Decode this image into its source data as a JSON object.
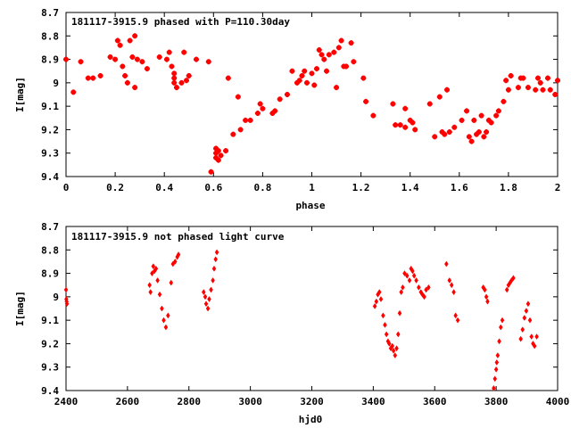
{
  "chart_data": [
    {
      "type": "scatter",
      "title": "181117-3915.9 phased with P=110.30day",
      "xlabel": "phase",
      "ylabel": "I[mag]",
      "xlim": [
        0,
        2
      ],
      "ylim": [
        9.4,
        8.7
      ],
      "y_inverted": true,
      "xticks": [
        "0",
        "0.2",
        "0.4",
        "0.6",
        "0.8",
        "1",
        "1.2",
        "1.4",
        "1.6",
        "1.8",
        "2"
      ],
      "yticks": [
        "8.7",
        "8.8",
        "8.9",
        "9",
        "9.1",
        "9.2",
        "9.3",
        "9.4"
      ],
      "marker": "plus",
      "color": "#ff0000",
      "grid": false,
      "points": [
        [
          0.0,
          8.9
        ],
        [
          0.03,
          9.04
        ],
        [
          0.06,
          8.91
        ],
        [
          0.09,
          8.98
        ],
        [
          0.11,
          8.98
        ],
        [
          0.14,
          8.97
        ],
        [
          0.18,
          8.89
        ],
        [
          0.2,
          8.9
        ],
        [
          0.21,
          8.82
        ],
        [
          0.22,
          8.84
        ],
        [
          0.23,
          8.93
        ],
        [
          0.24,
          8.97
        ],
        [
          0.25,
          9.0
        ],
        [
          0.26,
          8.82
        ],
        [
          0.27,
          8.89
        ],
        [
          0.28,
          8.8
        ],
        [
          0.28,
          9.02
        ],
        [
          0.29,
          8.9
        ],
        [
          0.31,
          8.91
        ],
        [
          0.33,
          8.94
        ],
        [
          0.38,
          8.89
        ],
        [
          0.41,
          8.9
        ],
        [
          0.42,
          8.87
        ],
        [
          0.43,
          8.93
        ],
        [
          0.44,
          8.96
        ],
        [
          0.44,
          8.98
        ],
        [
          0.44,
          9.0
        ],
        [
          0.45,
          9.02
        ],
        [
          0.47,
          9.0
        ],
        [
          0.48,
          8.87
        ],
        [
          0.49,
          8.99
        ],
        [
          0.5,
          8.97
        ],
        [
          0.53,
          8.9
        ],
        [
          0.58,
          8.91
        ],
        [
          0.59,
          9.38
        ],
        [
          0.61,
          9.28
        ],
        [
          0.61,
          9.3
        ],
        [
          0.61,
          9.32
        ],
        [
          0.62,
          9.33
        ],
        [
          0.62,
          9.29
        ],
        [
          0.63,
          9.31
        ],
        [
          0.65,
          9.29
        ],
        [
          0.66,
          8.98
        ],
        [
          0.68,
          9.22
        ],
        [
          0.7,
          9.06
        ],
        [
          0.71,
          9.2
        ],
        [
          0.73,
          9.16
        ],
        [
          0.75,
          9.16
        ],
        [
          0.78,
          9.13
        ],
        [
          0.79,
          9.09
        ],
        [
          0.8,
          9.11
        ],
        [
          0.84,
          9.13
        ],
        [
          0.85,
          9.12
        ],
        [
          0.87,
          9.07
        ],
        [
          0.9,
          9.05
        ],
        [
          0.92,
          8.95
        ],
        [
          0.94,
          9.0
        ],
        [
          0.95,
          8.99
        ],
        [
          0.96,
          8.97
        ],
        [
          0.97,
          8.95
        ],
        [
          0.98,
          9.0
        ],
        [
          1.0,
          8.96
        ],
        [
          1.01,
          9.01
        ],
        [
          1.02,
          8.94
        ],
        [
          1.03,
          8.86
        ],
        [
          1.04,
          8.88
        ],
        [
          1.05,
          8.9
        ],
        [
          1.06,
          8.95
        ],
        [
          1.07,
          8.88
        ],
        [
          1.09,
          8.87
        ],
        [
          1.1,
          9.02
        ],
        [
          1.11,
          8.85
        ],
        [
          1.12,
          8.82
        ],
        [
          1.13,
          8.93
        ],
        [
          1.14,
          8.93
        ],
        [
          1.16,
          8.83
        ],
        [
          1.17,
          8.91
        ],
        [
          1.21,
          8.98
        ],
        [
          1.22,
          9.08
        ],
        [
          1.25,
          9.14
        ],
        [
          1.33,
          9.09
        ],
        [
          1.34,
          9.18
        ],
        [
          1.36,
          9.18
        ],
        [
          1.38,
          9.19
        ],
        [
          1.38,
          9.11
        ],
        [
          1.4,
          9.16
        ],
        [
          1.41,
          9.17
        ],
        [
          1.42,
          9.2
        ],
        [
          1.48,
          9.09
        ],
        [
          1.5,
          9.23
        ],
        [
          1.52,
          9.06
        ],
        [
          1.53,
          9.21
        ],
        [
          1.54,
          9.22
        ],
        [
          1.55,
          9.03
        ],
        [
          1.56,
          9.21
        ],
        [
          1.58,
          9.19
        ],
        [
          1.61,
          9.16
        ],
        [
          1.63,
          9.12
        ],
        [
          1.64,
          9.23
        ],
        [
          1.65,
          9.25
        ],
        [
          1.66,
          9.16
        ],
        [
          1.67,
          9.22
        ],
        [
          1.68,
          9.21
        ],
        [
          1.69,
          9.14
        ],
        [
          1.7,
          9.23
        ],
        [
          1.71,
          9.21
        ],
        [
          1.72,
          9.16
        ],
        [
          1.73,
          9.17
        ],
        [
          1.75,
          9.14
        ],
        [
          1.76,
          9.12
        ],
        [
          1.78,
          9.08
        ],
        [
          1.79,
          8.99
        ],
        [
          1.8,
          9.03
        ],
        [
          1.81,
          8.97
        ],
        [
          1.84,
          9.02
        ],
        [
          1.85,
          8.98
        ],
        [
          1.86,
          8.98
        ],
        [
          1.88,
          9.02
        ],
        [
          1.91,
          9.03
        ],
        [
          1.92,
          8.98
        ],
        [
          1.93,
          9.0
        ],
        [
          1.94,
          9.03
        ],
        [
          1.96,
          8.98
        ],
        [
          1.97,
          9.03
        ],
        [
          1.99,
          9.05
        ],
        [
          2.0,
          8.99
        ]
      ]
    },
    {
      "type": "scatter",
      "title": "181117-3915.9 not phased light curve",
      "xlabel": "hjd0",
      "ylabel": "I[mag]",
      "xlim": [
        2400,
        4000
      ],
      "ylim": [
        9.4,
        8.7
      ],
      "y_inverted": true,
      "xticks": [
        "2400",
        "2600",
        "2800",
        "3000",
        "3200",
        "3400",
        "3600",
        "3800",
        "4000"
      ],
      "yticks": [
        "8.7",
        "8.8",
        "8.9",
        "9",
        "9.1",
        "9.2",
        "9.3",
        "9.4"
      ],
      "marker": "diamond",
      "color": "#ff0000",
      "grid": false,
      "points": [
        [
          2400,
          8.97
        ],
        [
          2401,
          9.01
        ],
        [
          2403,
          9.03
        ],
        [
          2402,
          9.02
        ],
        [
          2672,
          8.95
        ],
        [
          2675,
          8.98
        ],
        [
          2680,
          8.9
        ],
        [
          2684,
          8.87
        ],
        [
          2688,
          8.89
        ],
        [
          2693,
          8.88
        ],
        [
          2698,
          8.93
        ],
        [
          2705,
          8.99
        ],
        [
          2712,
          9.05
        ],
        [
          2718,
          9.1
        ],
        [
          2725,
          9.13
        ],
        [
          2732,
          9.08
        ],
        [
          2742,
          8.94
        ],
        [
          2748,
          8.86
        ],
        [
          2755,
          8.85
        ],
        [
          2762,
          8.83
        ],
        [
          2766,
          8.82
        ],
        [
          2848,
          8.98
        ],
        [
          2853,
          9.0
        ],
        [
          2856,
          9.03
        ],
        [
          2862,
          9.05
        ],
        [
          2866,
          9.01
        ],
        [
          2872,
          8.97
        ],
        [
          2878,
          8.93
        ],
        [
          2882,
          8.88
        ],
        [
          2887,
          8.84
        ],
        [
          2891,
          8.81
        ],
        [
          3405,
          9.04
        ],
        [
          3410,
          9.02
        ],
        [
          3415,
          8.99
        ],
        [
          3420,
          8.98
        ],
        [
          3425,
          9.01
        ],
        [
          3432,
          9.08
        ],
        [
          3438,
          9.12
        ],
        [
          3443,
          9.16
        ],
        [
          3448,
          9.19
        ],
        [
          3452,
          9.2
        ],
        [
          3457,
          9.22
        ],
        [
          3462,
          9.21
        ],
        [
          3466,
          9.23
        ],
        [
          3471,
          9.25
        ],
        [
          3476,
          9.22
        ],
        [
          3481,
          9.16
        ],
        [
          3486,
          9.07
        ],
        [
          3491,
          8.98
        ],
        [
          3496,
          8.96
        ],
        [
          3502,
          8.9
        ],
        [
          3510,
          8.91
        ],
        [
          3518,
          8.93
        ],
        [
          3523,
          8.88
        ],
        [
          3528,
          8.89
        ],
        [
          3533,
          8.91
        ],
        [
          3540,
          8.93
        ],
        [
          3548,
          8.96
        ],
        [
          3555,
          8.98
        ],
        [
          3560,
          8.99
        ],
        [
          3566,
          9.0
        ],
        [
          3572,
          8.97
        ],
        [
          3580,
          8.96
        ],
        [
          3638,
          8.86
        ],
        [
          3648,
          8.93
        ],
        [
          3655,
          8.95
        ],
        [
          3662,
          8.98
        ],
        [
          3668,
          9.08
        ],
        [
          3675,
          9.1
        ],
        [
          3758,
          8.96
        ],
        [
          3763,
          8.97
        ],
        [
          3768,
          9.0
        ],
        [
          3772,
          9.02
        ],
        [
          3792,
          9.39
        ],
        [
          3796,
          9.35
        ],
        [
          3800,
          9.31
        ],
        [
          3802,
          9.28
        ],
        [
          3805,
          9.25
        ],
        [
          3810,
          9.19
        ],
        [
          3815,
          9.13
        ],
        [
          3820,
          9.1
        ],
        [
          3835,
          8.97
        ],
        [
          3840,
          8.95
        ],
        [
          3845,
          8.94
        ],
        [
          3850,
          8.93
        ],
        [
          3856,
          8.92
        ],
        [
          3880,
          9.18
        ],
        [
          3886,
          9.14
        ],
        [
          3892,
          9.09
        ],
        [
          3898,
          9.06
        ],
        [
          3904,
          9.03
        ],
        [
          3910,
          9.1
        ],
        [
          3915,
          9.17
        ],
        [
          3920,
          9.2
        ],
        [
          3925,
          9.21
        ],
        [
          3932,
          9.17
        ]
      ]
    }
  ]
}
